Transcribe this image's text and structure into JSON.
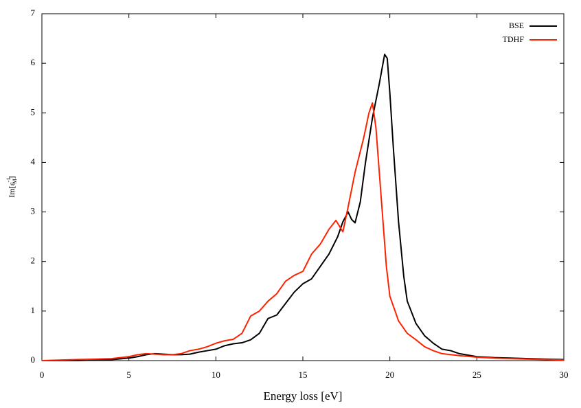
{
  "chart_data": {
    "type": "line",
    "xlabel": "Energy loss [eV]",
    "ylabel": [
      "Im[ε",
      "-1",
      "M",
      "]"
    ],
    "xlim": [
      0,
      30
    ],
    "xticks": [
      0,
      5,
      10,
      15,
      20,
      25,
      30
    ],
    "ylim": [
      0,
      7
    ],
    "yticks": [
      0,
      1,
      2,
      3,
      4,
      5,
      6,
      7
    ],
    "legend": "upper right",
    "series": [
      {
        "name": "BSE",
        "color": "#000000",
        "x": [
          0,
          1,
          2,
          3,
          4,
          5,
          5.5,
          6,
          6.5,
          7,
          7.5,
          8,
          8.5,
          9,
          9.5,
          10,
          10.5,
          11,
          11.5,
          12,
          12.5,
          13,
          13.5,
          14,
          14.5,
          15,
          15.5,
          16,
          16.5,
          17,
          17.3,
          17.6,
          17.8,
          18,
          18.3,
          18.6,
          19,
          19.4,
          19.7,
          19.85,
          20,
          20.2,
          20.5,
          20.8,
          21,
          21.5,
          22,
          22.5,
          23,
          23.5,
          24,
          25,
          26,
          27,
          28,
          29,
          30
        ],
        "values": [
          0,
          0,
          0,
          0.01,
          0.02,
          0.05,
          0.08,
          0.12,
          0.14,
          0.13,
          0.12,
          0.12,
          0.13,
          0.17,
          0.2,
          0.23,
          0.3,
          0.34,
          0.36,
          0.42,
          0.55,
          0.85,
          0.92,
          1.15,
          1.38,
          1.55,
          1.65,
          1.9,
          2.15,
          2.5,
          2.8,
          3.0,
          2.85,
          2.78,
          3.2,
          4.0,
          4.9,
          5.6,
          6.18,
          6.1,
          5.4,
          4.3,
          2.8,
          1.7,
          1.2,
          0.75,
          0.5,
          0.35,
          0.23,
          0.2,
          0.14,
          0.08,
          0.06,
          0.05,
          0.04,
          0.03,
          0.02
        ]
      },
      {
        "name": "TDHF",
        "color": "#ff2200",
        "x": [
          0,
          1,
          2,
          3,
          4,
          5,
          5.5,
          6,
          6.5,
          7,
          7.5,
          8,
          8.5,
          9,
          9.5,
          10,
          10.5,
          11,
          11.5,
          12,
          12.5,
          13,
          13.5,
          14,
          14.5,
          15,
          15.5,
          16,
          16.5,
          16.9,
          17.3,
          17.6,
          18,
          18.5,
          18.8,
          19,
          19.2,
          19.5,
          19.8,
          20,
          20.5,
          21,
          21.5,
          22,
          22.5,
          23,
          24,
          25,
          26,
          27,
          28,
          29,
          30
        ],
        "values": [
          0,
          0.01,
          0.02,
          0.03,
          0.04,
          0.08,
          0.12,
          0.14,
          0.13,
          0.12,
          0.12,
          0.14,
          0.2,
          0.23,
          0.28,
          0.35,
          0.4,
          0.43,
          0.55,
          0.9,
          1.0,
          1.2,
          1.35,
          1.6,
          1.72,
          1.8,
          2.15,
          2.35,
          2.65,
          2.83,
          2.6,
          3.1,
          3.8,
          4.5,
          5.0,
          5.2,
          4.7,
          3.3,
          1.9,
          1.3,
          0.8,
          0.55,
          0.42,
          0.28,
          0.2,
          0.14,
          0.1,
          0.07,
          0.05,
          0.04,
          0.03,
          0.02,
          0.01
        ]
      }
    ]
  }
}
